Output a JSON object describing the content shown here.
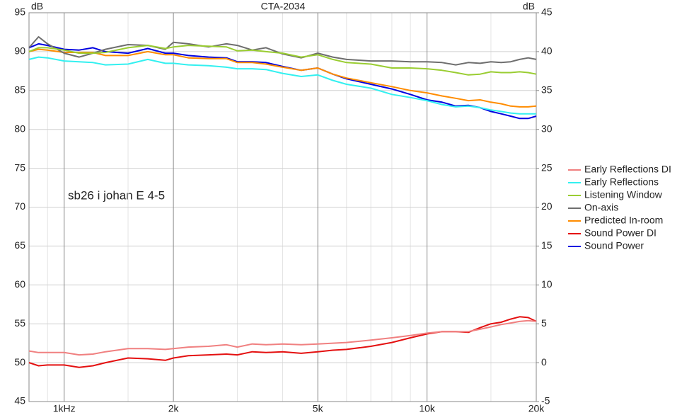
{
  "chart_data": {
    "type": "line",
    "title": "CTA-2034",
    "ylabel": "dB",
    "y2label": "dB",
    "annotation": "sb26 i johan E 4-5",
    "log_x": true,
    "grid": true,
    "legend": "right",
    "x": [
      800,
      850,
      900,
      1000,
      1100,
      1200,
      1300,
      1500,
      1700,
      1900,
      2000,
      2200,
      2500,
      2800,
      3000,
      3300,
      3600,
      4000,
      4500,
      5000,
      5500,
      6000,
      7000,
      8000,
      9000,
      10000,
      11000,
      12000,
      13000,
      14000,
      15000,
      16000,
      17000,
      18000,
      19000,
      20000
    ],
    "xlim": [
      800,
      20000
    ],
    "xticks": [
      {
        "value": 1000,
        "label": "1kHz"
      },
      {
        "value": 2000,
        "label": "2k"
      },
      {
        "value": 5000,
        "label": "5k"
      },
      {
        "value": 10000,
        "label": "10k"
      },
      {
        "value": 20000,
        "label": "20k"
      }
    ],
    "x_minor_grid": [
      900,
      1500,
      3000,
      4000,
      6000,
      7000,
      8000,
      9000,
      15000
    ],
    "ylim": [
      45,
      95
    ],
    "yticks": [
      45,
      50,
      55,
      60,
      65,
      70,
      75,
      80,
      85,
      90,
      95
    ],
    "y2lim": [
      -5,
      45
    ],
    "y2ticks": [
      -5,
      0,
      5,
      10,
      15,
      20,
      25,
      30,
      35,
      40,
      45
    ],
    "series": [
      {
        "name": "Early Reflections DI",
        "color": "#f08080",
        "axis": "y2",
        "values": [
          1.5,
          1.3,
          1.3,
          1.3,
          1.0,
          1.1,
          1.4,
          1.8,
          1.8,
          1.7,
          1.8,
          2.0,
          2.1,
          2.3,
          2.0,
          2.4,
          2.3,
          2.4,
          2.3,
          2.4,
          2.5,
          2.6,
          2.9,
          3.2,
          3.5,
          3.8,
          4.0,
          4.0,
          4.0,
          4.3,
          4.6,
          4.9,
          5.1,
          5.3,
          5.4,
          5.3
        ]
      },
      {
        "name": "Early Reflections",
        "color": "#33f0f0",
        "values": [
          89.0,
          89.3,
          89.2,
          88.8,
          88.7,
          88.6,
          88.3,
          88.4,
          89.0,
          88.5,
          88.5,
          88.3,
          88.2,
          88.0,
          87.8,
          87.8,
          87.7,
          87.2,
          86.8,
          87.0,
          86.3,
          85.8,
          85.3,
          84.5,
          84.1,
          83.7,
          83.2,
          82.9,
          83.0,
          82.8,
          82.5,
          82.3,
          82.1,
          82.0,
          82.0,
          82.0
        ]
      },
      {
        "name": "Listening Window",
        "color": "#9acd32",
        "values": [
          90.0,
          90.5,
          90.5,
          90.2,
          89.8,
          89.8,
          89.9,
          90.5,
          90.8,
          90.4,
          90.6,
          90.8,
          90.7,
          90.6,
          90.1,
          90.2,
          90.0,
          89.8,
          89.3,
          89.6,
          89.0,
          88.6,
          88.4,
          87.9,
          87.9,
          87.8,
          87.6,
          87.3,
          87.0,
          87.1,
          87.4,
          87.3,
          87.3,
          87.4,
          87.3,
          87.1
        ]
      },
      {
        "name": "On-axis",
        "color": "#6e6e6e",
        "values": [
          90.5,
          91.9,
          91.0,
          89.8,
          89.3,
          89.8,
          90.3,
          90.9,
          90.8,
          90.3,
          91.2,
          91.0,
          90.6,
          91.0,
          90.8,
          90.2,
          90.5,
          89.7,
          89.2,
          89.8,
          89.3,
          89.0,
          88.8,
          88.8,
          88.7,
          88.7,
          88.6,
          88.3,
          88.6,
          88.5,
          88.7,
          88.6,
          88.7,
          89.0,
          89.2,
          89.0
        ]
      },
      {
        "name": "Predicted In-room",
        "color": "#ff8c00",
        "values": [
          90.0,
          90.3,
          90.2,
          89.9,
          89.9,
          89.9,
          89.5,
          89.5,
          90.0,
          89.6,
          89.6,
          89.2,
          89.1,
          89.1,
          88.6,
          88.6,
          88.4,
          88.0,
          87.6,
          87.9,
          87.1,
          86.6,
          86.0,
          85.5,
          85.0,
          84.7,
          84.3,
          84.0,
          83.7,
          83.8,
          83.5,
          83.3,
          83.0,
          82.9,
          82.9,
          83.0
        ]
      },
      {
        "name": "Sound Power DI",
        "color": "#e41010",
        "axis": "y2",
        "values": [
          0.0,
          -0.4,
          -0.3,
          -0.3,
          -0.6,
          -0.4,
          0.0,
          0.6,
          0.5,
          0.3,
          0.6,
          0.9,
          1.0,
          1.1,
          1.0,
          1.4,
          1.3,
          1.4,
          1.2,
          1.4,
          1.6,
          1.7,
          2.1,
          2.6,
          3.2,
          3.7,
          4.0,
          4.0,
          3.9,
          4.5,
          5.0,
          5.2,
          5.6,
          5.9,
          5.8,
          5.3
        ]
      },
      {
        "name": "Sound Power",
        "color": "#0000e0",
        "values": [
          90.5,
          91.0,
          90.8,
          90.3,
          90.2,
          90.5,
          90.0,
          89.8,
          90.4,
          89.8,
          89.8,
          89.5,
          89.3,
          89.2,
          88.7,
          88.7,
          88.6,
          88.1,
          87.6,
          87.9,
          87.1,
          86.5,
          85.8,
          85.2,
          84.5,
          83.8,
          83.5,
          83.0,
          83.1,
          82.8,
          82.3,
          82.0,
          81.7,
          81.4,
          81.4,
          81.7
        ]
      }
    ]
  }
}
